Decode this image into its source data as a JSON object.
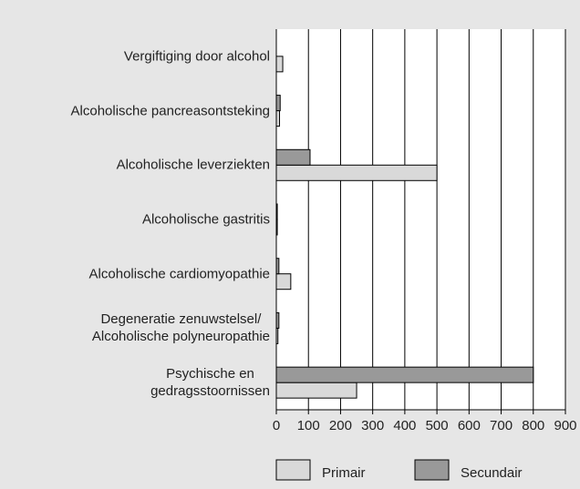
{
  "chart_data": {
    "type": "hbar",
    "categories": [
      "Vergiftiging door alcohol",
      "Alcoholische pancreasontsteking",
      "Alcoholische leverziekten",
      "Alcoholische gastritis",
      "Alcoholische cardiomyopathie",
      "Degeneratie zenuwstelsel/\nAlcoholische polyneuropathie",
      "Psychische en\ngedragsstoornissen"
    ],
    "series": [
      {
        "name": "Primair",
        "color": "#d9d9d9",
        "values": [
          20,
          10,
          500,
          3,
          45,
          5,
          250
        ]
      },
      {
        "name": "Secundair",
        "color": "#999999",
        "values": [
          0,
          12,
          105,
          3,
          8,
          8,
          800
        ]
      }
    ],
    "xlim": [
      0,
      900
    ],
    "xticks": [
      0,
      100,
      200,
      300,
      400,
      500,
      600,
      700,
      800,
      900
    ],
    "grid": true
  }
}
